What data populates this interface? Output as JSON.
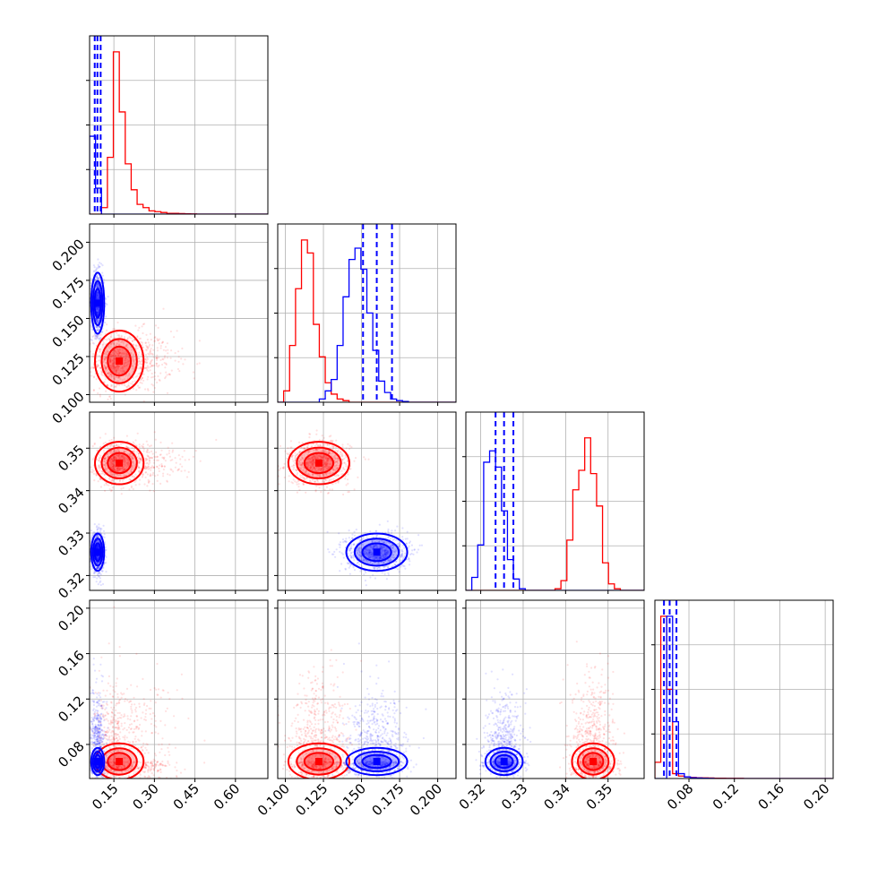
{
  "figure_type": "corner plot",
  "colors": {
    "red": "#ff0000",
    "blue": "#0000ff"
  },
  "series": [
    {
      "color": "red"
    },
    {
      "color": "blue"
    }
  ],
  "chart_data": {
    "type": "corner",
    "n_params": 4,
    "grid": true,
    "param_ranges": [
      [
        0.06,
        0.72
      ],
      [
        0.095,
        0.212
      ],
      [
        0.3165,
        0.3585
      ],
      [
        0.05,
        0.207
      ]
    ],
    "x_ticks": [
      {
        "labels": [
          "0.15",
          "0.30",
          "0.45",
          "0.60"
        ],
        "values": [
          0.15,
          0.3,
          0.45,
          0.6
        ]
      },
      {
        "labels": [
          "0.100",
          "0.125",
          "0.150",
          "0.175",
          "0.200"
        ],
        "values": [
          0.1,
          0.125,
          0.15,
          0.175,
          0.2
        ]
      },
      {
        "labels": [
          "0.32",
          "0.33",
          "0.34",
          "0.35"
        ],
        "values": [
          0.32,
          0.33,
          0.34,
          0.35
        ]
      },
      {
        "labels": [
          "0.08",
          "0.12",
          "0.16",
          "0.20"
        ],
        "values": [
          0.08,
          0.12,
          0.16,
          0.2
        ]
      }
    ],
    "y_ticks": [
      null,
      {
        "labels": [
          "0.100",
          "0.125",
          "0.150",
          "0.175",
          "0.200"
        ],
        "values": [
          0.1,
          0.125,
          0.15,
          0.175,
          0.2
        ]
      },
      {
        "labels": [
          "0.32",
          "0.33",
          "0.34",
          "0.35"
        ],
        "values": [
          0.32,
          0.33,
          0.34,
          0.35
        ]
      },
      {
        "labels": [
          "0.08",
          "0.12",
          "0.16",
          "0.20"
        ],
        "values": [
          0.08,
          0.12,
          0.16,
          0.2
        ]
      }
    ],
    "distributions": {
      "red": {
        "centers": [
          0.17,
          0.122,
          0.3465,
          0.065
        ],
        "sigmas": [
          0.045,
          0.01,
          0.0025,
          0.008
        ]
      },
      "blue": {
        "centers": [
          0.09,
          0.16,
          0.3255,
          0.065
        ],
        "sigmas": [
          0.012,
          0.01,
          0.0022,
          0.006
        ]
      }
    },
    "histograms": [
      {
        "bin_start": 0.06,
        "bin_width": 0.022,
        "red": [
          0,
          0,
          4,
          35,
          100,
          63,
          31,
          15,
          6,
          4,
          2,
          1.5,
          1,
          0.5,
          0.5,
          0.3,
          0.2,
          0.1,
          0,
          0,
          0,
          0,
          0,
          0,
          0,
          0,
          0,
          0,
          0,
          0
        ],
        "blue": [
          48,
          16,
          0,
          0,
          0,
          0,
          0,
          0,
          0,
          0,
          0,
          0,
          0,
          0,
          0,
          0,
          0,
          0,
          0,
          0,
          0,
          0,
          0,
          0,
          0,
          0,
          0,
          0,
          0,
          0
        ]
      },
      {
        "bin_start": 0.095,
        "bin_width": 0.0039,
        "red": [
          0,
          7,
          35,
          70,
          100,
          92,
          48,
          28,
          12,
          5,
          2,
          1,
          0,
          0,
          0,
          0,
          0,
          0,
          0,
          0,
          0,
          0,
          0,
          0,
          0,
          0,
          0,
          0,
          0,
          0
        ],
        "blue": [
          0,
          0,
          0,
          0,
          0,
          0,
          0,
          2,
          7,
          14,
          35,
          65,
          88,
          95,
          82,
          55,
          32,
          13,
          6,
          2,
          1,
          0.5,
          0,
          0,
          0,
          0,
          0,
          0,
          0,
          0
        ]
      },
      {
        "bin_start": 0.3165,
        "bin_width": 0.0014,
        "red": [
          0,
          0,
          0,
          0,
          0,
          0,
          0,
          0,
          0,
          0,
          0,
          0,
          0,
          0,
          0,
          1,
          6,
          31,
          62,
          74,
          94,
          72,
          52,
          17,
          4,
          1,
          0,
          0,
          0,
          0
        ],
        "blue": [
          0,
          8,
          28,
          79,
          86,
          76,
          49,
          19,
          7,
          1,
          0,
          0,
          0,
          0,
          0,
          0,
          0,
          0,
          0,
          0,
          0,
          0,
          0,
          0,
          0,
          0,
          0,
          0,
          0,
          0
        ]
      },
      {
        "bin_start": 0.05,
        "bin_width": 0.0052,
        "red": [
          10,
          100,
          55,
          3,
          1.5,
          1,
          0.7,
          0.5,
          0.4,
          0.3,
          0.2,
          0.2,
          0.1,
          0.1,
          0.1,
          0,
          0,
          0,
          0,
          0,
          0,
          0,
          0,
          0,
          0,
          0,
          0,
          0,
          0,
          0
        ],
        "blue": [
          0,
          0,
          100,
          35,
          3,
          1,
          0.5,
          0.3,
          0.2,
          0.1,
          0,
          0,
          0,
          0,
          0,
          0,
          0,
          0,
          0,
          0,
          0,
          0,
          0,
          0,
          0,
          0,
          0,
          0,
          0,
          0
        ]
      }
    ],
    "quantile_lines": {
      "color": "blue",
      "values": [
        [
          0.079,
          0.089,
          0.101
        ],
        [
          0.151,
          0.16,
          0.17
        ],
        [
          0.3235,
          0.3255,
          0.3277
        ],
        [
          0.058,
          0.063,
          0.069
        ]
      ]
    }
  }
}
